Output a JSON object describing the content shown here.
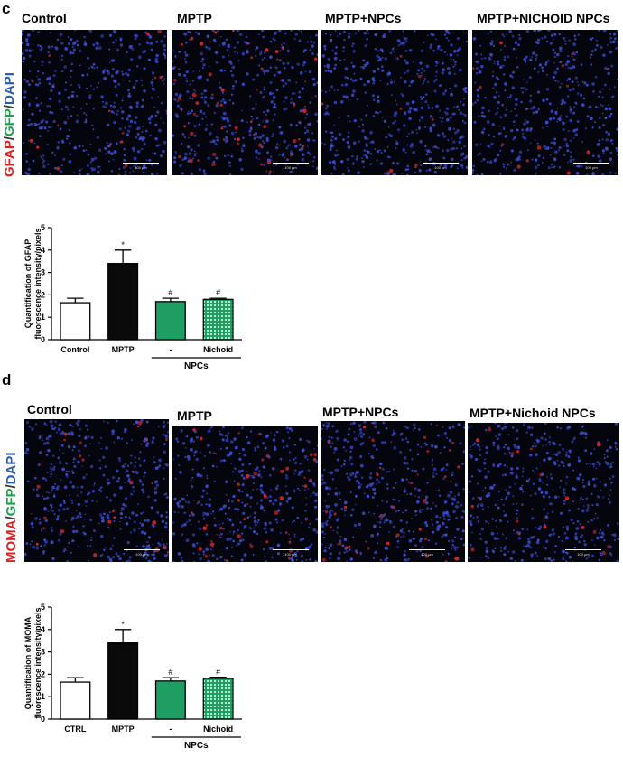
{
  "panel_c": {
    "letter": "c",
    "images": [
      {
        "title": "Control",
        "scale": "100 µm"
      },
      {
        "title": "MPTP",
        "scale": "100 µm"
      },
      {
        "title": "MPTP+NPCs",
        "scale": "100 µm"
      },
      {
        "title": "MPTP+NICHOID NPCs",
        "scale": "100 µm"
      }
    ],
    "stain_label": {
      "a": "GFAP",
      "b": "GFP",
      "c": "DAPI",
      "sep": "/"
    }
  },
  "panel_d": {
    "letter": "d",
    "images": [
      {
        "title": "Control",
        "scale": "100 µm"
      },
      {
        "title": "MPTP",
        "scale": "100 µm"
      },
      {
        "title": "MPTP+NPCs",
        "scale": "100 µm"
      },
      {
        "title": "MPTP+Nichoid NPCs",
        "scale": "100 µm"
      }
    ],
    "stain_label": {
      "a": "MOMA",
      "b": "GFP",
      "c": "DAPI",
      "sep": "/"
    }
  },
  "colors": {
    "red": "#e02020",
    "green": "#1aa04a",
    "blue": "#2a5bb0",
    "bar_green": "#1f9e63"
  },
  "chart_data": [
    {
      "type": "bar",
      "ylabel_line1": "Quantification of GFAP",
      "ylabel_line2": "fluorescence intensity/pixels",
      "categories": [
        "Control",
        "MPTP",
        "-",
        "Nichoid"
      ],
      "values": [
        1.65,
        3.4,
        1.7,
        1.8
      ],
      "errors": [
        0.2,
        0.6,
        0.15,
        0.05
      ],
      "annotations": [
        "",
        "*",
        "#",
        "#"
      ],
      "fills": [
        "white",
        "black",
        "green",
        "green-grid"
      ],
      "group_label": "NPCs",
      "ylim": [
        0,
        5
      ],
      "yticks": [
        "0",
        "1",
        "2",
        "3",
        "4",
        "5"
      ]
    },
    {
      "type": "bar",
      "ylabel_line1": "Quantification of MOMA",
      "ylabel_line2": "fluorescence intensity/pixels",
      "categories": [
        "CTRL",
        "MPTP",
        "-",
        "Nichoid"
      ],
      "values": [
        1.65,
        3.4,
        1.7,
        1.82
      ],
      "errors": [
        0.2,
        0.6,
        0.15,
        0.05
      ],
      "annotations": [
        "",
        "*",
        "#",
        "#"
      ],
      "fills": [
        "white",
        "black",
        "green",
        "green-grid"
      ],
      "group_label": "NPCs",
      "ylim": [
        0,
        5
      ],
      "yticks": [
        "0",
        "1",
        "2",
        "3",
        "4",
        "5"
      ]
    }
  ]
}
